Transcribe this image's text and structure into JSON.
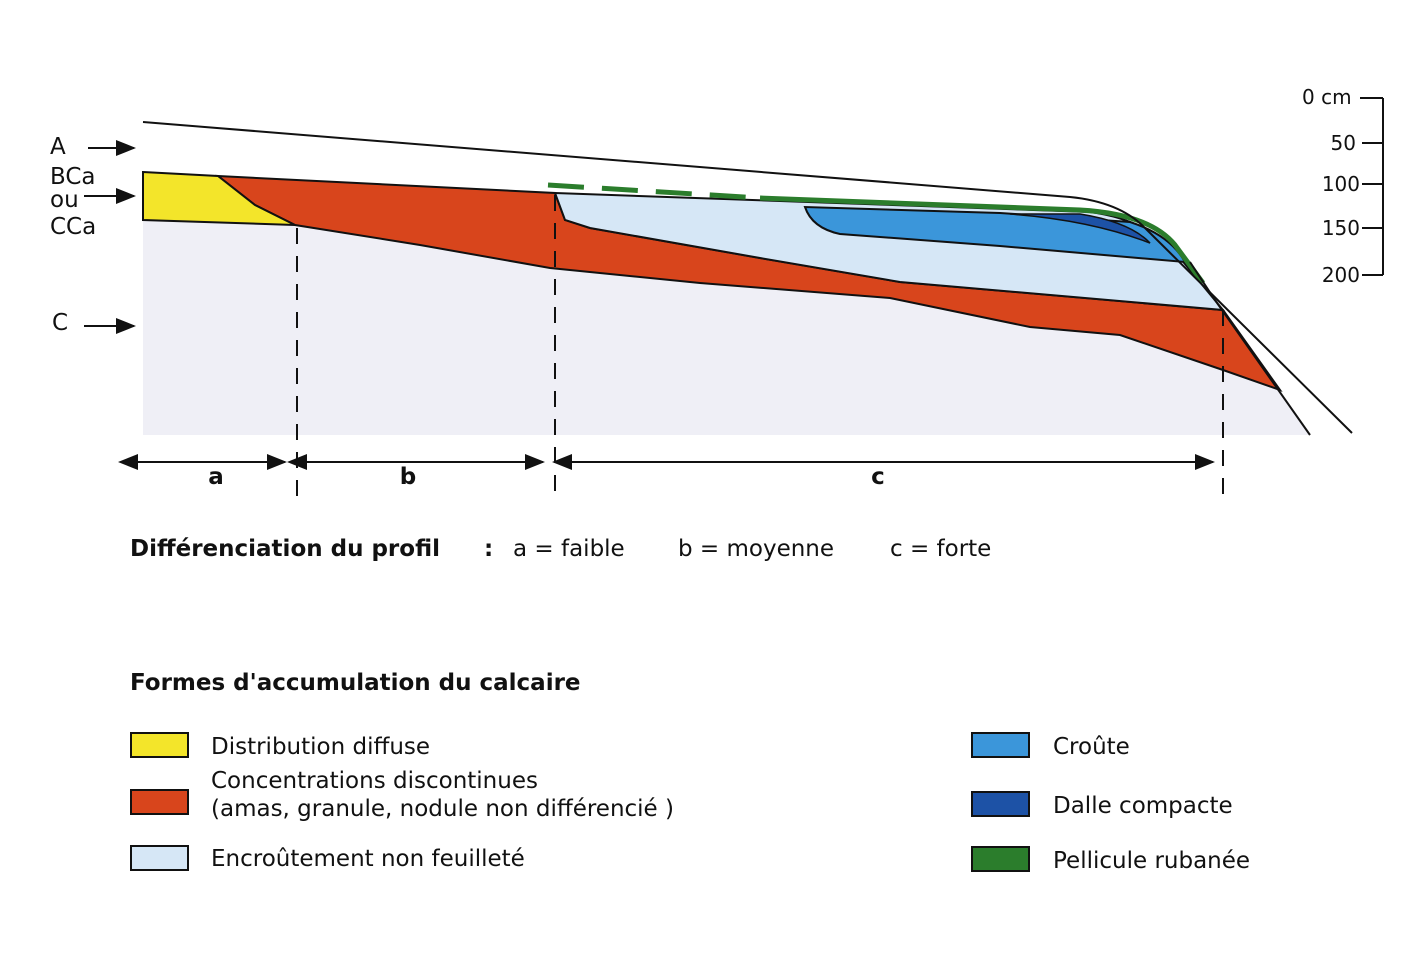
{
  "horizons": {
    "a": "A",
    "bca": "BCa",
    "ou": "ou",
    "cca": "CCa",
    "c": "C"
  },
  "depth_scale": {
    "unit_label": "0 cm",
    "ticks": [
      "50",
      "100",
      "150",
      "200"
    ]
  },
  "zones": {
    "a": "a",
    "b": "b",
    "c": "c"
  },
  "differentiation": {
    "title": "Différenciation du profil",
    "separator": ":",
    "a": "a = faible",
    "b": "b = moyenne",
    "c": "c = forte"
  },
  "legend": {
    "title": "Formes d'accumulation du calcaire",
    "items": [
      {
        "label": "Distribution diffuse",
        "color": "#f3e52a"
      },
      {
        "label": "Concentrations discontinues",
        "label2": "(amas, granule, nodule non différencié )",
        "color": "#d8451c"
      },
      {
        "label": "Encroûtement non feuilleté",
        "color": "#d6e7f6"
      },
      {
        "label": "Croûte",
        "color": "#3b96da"
      },
      {
        "label": "Dalle compacte",
        "color": "#1d52a6"
      },
      {
        "label": "Pellicule rubanée",
        "color": "#2b7d2c"
      }
    ]
  },
  "colors": {
    "ground": "#efeff6",
    "line": "#111111"
  }
}
